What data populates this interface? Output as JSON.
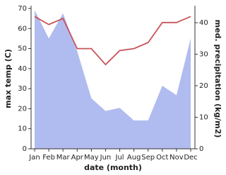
{
  "chart_data": {
    "type": "dual-area-line",
    "x_label": "date (month)",
    "y_label": "max temp (C)",
    "y2_label": "med. precipitation (kg/m2)",
    "categories": [
      "Jan",
      "Feb",
      "Mar",
      "Apr",
      "May",
      "Jun",
      "Jul",
      "Aug",
      "Sep",
      "Oct",
      "Nov",
      "Dec"
    ],
    "ylim": [
      0,
      70
    ],
    "yticks": [
      0,
      10,
      20,
      30,
      40,
      50,
      60,
      70
    ],
    "y2lim": [
      0,
      44.5
    ],
    "y2ticks": [
      0,
      10,
      20,
      30,
      40
    ],
    "series": [
      {
        "name": "med. precipitation",
        "color": "#b0bcf0",
        "axis": "y2",
        "kind": "area",
        "values": [
          44,
          35,
          43,
          31,
          16,
          12,
          13,
          9,
          9,
          20,
          17,
          35
        ]
      },
      {
        "name": "max temp",
        "color": "#c8555a",
        "kind": "line",
        "values": [
          66,
          62,
          65,
          50,
          50,
          42,
          49,
          50,
          53,
          63,
          63,
          66
        ]
      }
    ]
  }
}
